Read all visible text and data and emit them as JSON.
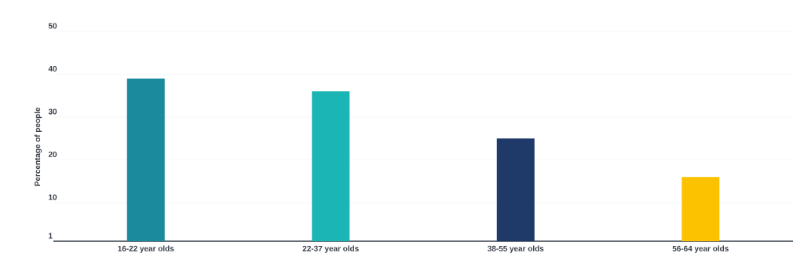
{
  "chart_data": {
    "type": "bar",
    "ylabel": "Percentage of people",
    "categories": [
      "16-22 year olds",
      "22-37 year olds",
      "38-55 year olds",
      "56-64 year olds"
    ],
    "values": [
      39,
      36,
      25,
      16
    ],
    "colors": [
      "#1a8a9c",
      "#1cb5b5",
      "#1f3a68",
      "#fcc200"
    ],
    "ylim": [
      1,
      50
    ],
    "yticks": [
      1,
      10,
      20,
      30,
      40,
      50
    ],
    "grid": "y"
  }
}
